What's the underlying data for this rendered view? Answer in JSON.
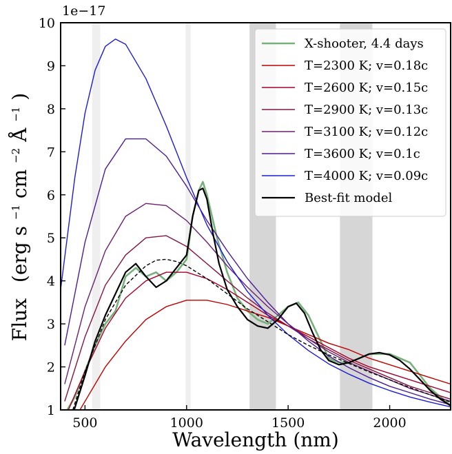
{
  "chart_data": {
    "type": "line",
    "xlabel": "Wavelength (nm)",
    "ylabel": "Flux (erg s$^{-1}$ cm$^{-2}$ Å$^{-1}$)",
    "ylabel_parts": {
      "main": "Flux",
      "open": "(erg s",
      "exp1": "−1",
      "cm": " cm",
      "exp2": "−2",
      "unit": " Å",
      "exp3": "−1",
      "close": ")"
    },
    "y_multiplier": "1e−17",
    "xlim": [
      380,
      2300
    ],
    "ylim": [
      1,
      10
    ],
    "x_ticks": [
      500,
      1000,
      1500,
      2000
    ],
    "y_ticks": [
      1,
      2,
      3,
      4,
      5,
      6,
      7,
      8,
      9,
      10
    ],
    "legend_position": "top-right",
    "shaded_regions": [
      {
        "x": [
          535,
          575
        ],
        "shade": "light"
      },
      {
        "x": [
          995,
          1020
        ],
        "shade": "light"
      },
      {
        "x": [
          1310,
          1440
        ],
        "shade": "dark"
      },
      {
        "x": [
          1755,
          1915
        ],
        "shade": "dark"
      }
    ],
    "series": [
      {
        "name": "X-shooter, 4.4 days",
        "color": "#77b07b",
        "kind": "observed",
        "x": [
          400,
          450,
          500,
          550,
          600,
          650,
          700,
          750,
          800,
          850,
          900,
          950,
          1000,
          1030,
          1060,
          1080,
          1100,
          1150,
          1200,
          1250,
          1300,
          1350,
          1400,
          1450,
          1500,
          1550,
          1600,
          1650,
          1700,
          1750,
          1800,
          1850,
          1900,
          1950,
          2000,
          2050,
          2100,
          2150,
          2200,
          2250,
          2300
        ],
        "y": [
          0.9,
          1.3,
          1.9,
          2.5,
          3.0,
          3.3,
          4.1,
          4.3,
          4.1,
          4.2,
          4.0,
          4.2,
          4.5,
          5.5,
          6.1,
          6.3,
          6.0,
          5.0,
          4.2,
          3.6,
          3.3,
          3.1,
          3.0,
          3.2,
          3.4,
          3.5,
          3.2,
          2.7,
          2.2,
          2.1,
          2.1,
          2.2,
          2.3,
          2.3,
          2.3,
          2.2,
          2.1,
          1.8,
          1.5,
          1.3,
          1.1
        ]
      },
      {
        "name": "T=2300 K; v=0.18c",
        "color": "#c00000",
        "kind": "blackbody",
        "x": [
          400,
          500,
          600,
          700,
          800,
          900,
          1000,
          1100,
          1200,
          1300,
          1400,
          1500,
          1600,
          1700,
          1800,
          1900,
          2000,
          2100,
          2200,
          2300
        ],
        "y": [
          0.4,
          1.2,
          2.0,
          2.6,
          3.1,
          3.4,
          3.55,
          3.55,
          3.45,
          3.3,
          3.15,
          2.95,
          2.75,
          2.55,
          2.4,
          2.2,
          2.05,
          1.9,
          1.75,
          1.6
        ]
      },
      {
        "name": "T=2600 K; v=0.15c",
        "color": "#a5002a",
        "kind": "blackbody",
        "x": [
          400,
          500,
          600,
          700,
          800,
          900,
          1000,
          1100,
          1200,
          1300,
          1400,
          1500,
          1600,
          1700,
          1800,
          1900,
          2000,
          2100,
          2200,
          2300
        ],
        "y": [
          0.8,
          1.9,
          2.9,
          3.6,
          4.0,
          4.2,
          4.2,
          4.05,
          3.8,
          3.5,
          3.2,
          2.95,
          2.7,
          2.45,
          2.2,
          2.0,
          1.85,
          1.7,
          1.55,
          1.4
        ]
      },
      {
        "name": "T=2900 K; v=0.13c",
        "color": "#841440",
        "kind": "blackbody",
        "x": [
          400,
          500,
          600,
          700,
          800,
          900,
          1000,
          1100,
          1200,
          1300,
          1400,
          1500,
          1600,
          1700,
          1800,
          1900,
          2000,
          2100,
          2200,
          2300
        ],
        "y": [
          1.2,
          2.7,
          3.9,
          4.6,
          5.0,
          5.05,
          4.8,
          4.4,
          4.0,
          3.6,
          3.25,
          2.95,
          2.65,
          2.4,
          2.15,
          1.95,
          1.75,
          1.55,
          1.4,
          1.25
        ]
      },
      {
        "name": "T=3100 K; v=0.12c",
        "color": "#6b1f70",
        "kind": "blackbody",
        "x": [
          400,
          500,
          600,
          700,
          800,
          900,
          1000,
          1100,
          1200,
          1300,
          1400,
          1500,
          1600,
          1700,
          1800,
          1900,
          2000,
          2100,
          2200,
          2300
        ],
        "y": [
          1.6,
          3.4,
          4.7,
          5.5,
          5.8,
          5.75,
          5.4,
          4.9,
          4.35,
          3.85,
          3.4,
          3.0,
          2.65,
          2.35,
          2.1,
          1.9,
          1.7,
          1.5,
          1.35,
          1.2
        ]
      },
      {
        "name": "T=3600 K; v=0.1c",
        "color": "#4c1a94",
        "kind": "blackbody",
        "x": [
          400,
          500,
          600,
          700,
          800,
          900,
          1000,
          1100,
          1200,
          1300,
          1400,
          1500,
          1600,
          1700,
          1800,
          1900,
          2000,
          2100,
          2200,
          2300
        ],
        "y": [
          2.5,
          4.9,
          6.6,
          7.3,
          7.3,
          6.9,
          6.2,
          5.4,
          4.7,
          4.05,
          3.5,
          3.0,
          2.6,
          2.25,
          1.98,
          1.75,
          1.55,
          1.4,
          1.25,
          1.12
        ]
      },
      {
        "name": "T=4000 K; v=0.09c",
        "color": "#1b1bd6",
        "kind": "blackbody",
        "x": [
          380,
          450,
          500,
          550,
          600,
          650,
          700,
          800,
          900,
          1000,
          1100,
          1200,
          1300,
          1400,
          1500,
          1600,
          1700,
          1800,
          1900,
          2000,
          2100,
          2200,
          2300
        ],
        "y": [
          3.8,
          6.4,
          7.9,
          8.9,
          9.45,
          9.62,
          9.5,
          8.7,
          7.6,
          6.4,
          5.3,
          4.45,
          3.75,
          3.2,
          2.75,
          2.38,
          2.07,
          1.83,
          1.62,
          1.45,
          1.3,
          1.18,
          1.07
        ]
      },
      {
        "name": "Best-fit model",
        "color": "#000000",
        "kind": "fit",
        "x": [
          440,
          500,
          550,
          600,
          650,
          700,
          750,
          800,
          850,
          900,
          950,
          1000,
          1030,
          1060,
          1080,
          1100,
          1130,
          1160,
          1200,
          1250,
          1300,
          1350,
          1400,
          1450,
          1500,
          1540,
          1580,
          1620,
          1660,
          1700,
          1750,
          1800,
          1850,
          1900,
          1950,
          2000,
          2050,
          2100,
          2150,
          2200,
          2250,
          2300
        ],
        "y": [
          0.9,
          1.8,
          2.6,
          3.2,
          3.7,
          4.2,
          4.4,
          4.1,
          3.85,
          4.0,
          4.3,
          4.6,
          5.5,
          6.1,
          6.15,
          5.9,
          5.1,
          4.4,
          3.8,
          3.4,
          3.1,
          2.95,
          2.9,
          3.1,
          3.4,
          3.48,
          3.25,
          2.8,
          2.4,
          2.15,
          2.05,
          2.1,
          2.2,
          2.3,
          2.33,
          2.28,
          2.15,
          1.95,
          1.7,
          1.45,
          1.25,
          1.1
        ]
      },
      {
        "name": "",
        "color": "#000000",
        "kind": "dashed",
        "x": [
          440,
          500,
          600,
          700,
          800,
          850,
          900,
          950,
          1000,
          1100,
          1200,
          1300,
          1400,
          1500,
          1600,
          1700,
          1800,
          1900,
          2000,
          2100,
          2200,
          2300
        ],
        "y": [
          1.0,
          1.9,
          3.1,
          3.9,
          4.35,
          4.48,
          4.5,
          4.45,
          4.35,
          4.05,
          3.7,
          3.35,
          3.05,
          2.75,
          2.5,
          2.28,
          2.08,
          1.88,
          1.7,
          1.52,
          1.35,
          1.18
        ]
      }
    ]
  }
}
